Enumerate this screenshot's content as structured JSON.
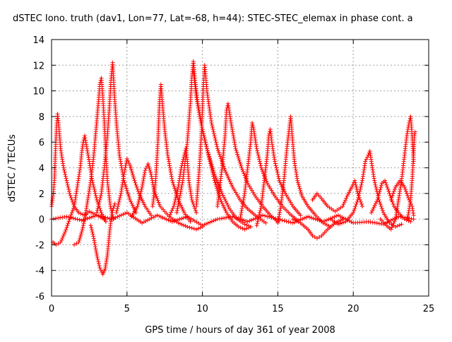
{
  "chart_data": {
    "type": "scatter",
    "title": "dSTEC Iono. truth (dav1, Lon=77, Lat=-68, h=44): STEC-STEC_elemax in phase cont. a",
    "xlabel": "GPS time / hours of day 361 of year 2008",
    "ylabel": "dSTEC  / TECUs",
    "xlim": [
      0,
      25
    ],
    "ylim": [
      -6,
      14
    ],
    "x_ticks": [
      0,
      5,
      10,
      15,
      20,
      25
    ],
    "y_ticks": [
      -6,
      -4,
      -2,
      0,
      2,
      4,
      6,
      8,
      10,
      12,
      14
    ],
    "grid": true,
    "marker": "+",
    "color": "#ff0000",
    "series": [
      {
        "values": [
          [
            0.0,
            1.0
          ],
          [
            0.1,
            1.8
          ],
          [
            0.2,
            3.2
          ],
          [
            0.25,
            5.0
          ],
          [
            0.3,
            6.5
          ],
          [
            0.35,
            7.5
          ],
          [
            0.4,
            8.2
          ],
          [
            0.5,
            7.0
          ],
          [
            0.6,
            5.5
          ],
          [
            0.8,
            4.0
          ],
          [
            1.0,
            3.0
          ],
          [
            1.2,
            2.0
          ],
          [
            1.5,
            1.0
          ],
          [
            1.8,
            0.5
          ],
          [
            2.2,
            0.3
          ],
          [
            2.5,
            0.6
          ],
          [
            3.0,
            0.3
          ],
          [
            3.5,
            0.0
          ]
        ]
      },
      {
        "values": [
          [
            0.1,
            -1.8
          ],
          [
            0.3,
            -2.0
          ],
          [
            0.6,
            -1.8
          ],
          [
            0.9,
            -1.0
          ],
          [
            1.2,
            0.0
          ],
          [
            1.5,
            1.0
          ],
          [
            1.7,
            2.5
          ],
          [
            1.9,
            4.0
          ],
          [
            2.0,
            5.2
          ],
          [
            2.1,
            6.0
          ],
          [
            2.2,
            6.5
          ],
          [
            2.3,
            5.8
          ],
          [
            2.5,
            4.5
          ],
          [
            2.7,
            3.0
          ],
          [
            3.0,
            1.5
          ],
          [
            3.3,
            0.5
          ],
          [
            3.6,
            -0.2
          ]
        ]
      },
      {
        "values": [
          [
            1.5,
            -2.0
          ],
          [
            1.8,
            -1.8
          ],
          [
            2.0,
            -1.0
          ],
          [
            2.2,
            0.0
          ],
          [
            2.4,
            1.5
          ],
          [
            2.6,
            3.0
          ],
          [
            2.8,
            5.0
          ],
          [
            2.95,
            7.0
          ],
          [
            3.1,
            9.0
          ],
          [
            3.2,
            10.5
          ],
          [
            3.3,
            11.0
          ],
          [
            3.4,
            9.5
          ],
          [
            3.5,
            7.5
          ],
          [
            3.6,
            5.0
          ],
          [
            3.7,
            3.0
          ],
          [
            3.9,
            1.0
          ],
          [
            4.1,
            0.0
          ]
        ]
      },
      {
        "values": [
          [
            2.6,
            -0.5
          ],
          [
            2.8,
            -1.5
          ],
          [
            3.0,
            -2.8
          ],
          [
            3.2,
            -3.8
          ],
          [
            3.4,
            -4.3
          ],
          [
            3.55,
            -3.9
          ],
          [
            3.7,
            -2.8
          ],
          [
            3.85,
            -1.0
          ],
          [
            4.0,
            0.5
          ],
          [
            4.2,
            1.2
          ]
        ]
      },
      {
        "values": [
          [
            3.0,
            0.5
          ],
          [
            3.3,
            2.0
          ],
          [
            3.5,
            4.0
          ],
          [
            3.7,
            6.5
          ],
          [
            3.85,
            9.0
          ],
          [
            3.95,
            11.0
          ],
          [
            4.05,
            12.2
          ],
          [
            4.15,
            10.0
          ],
          [
            4.3,
            7.5
          ],
          [
            4.5,
            5.0
          ],
          [
            4.8,
            3.0
          ],
          [
            5.2,
            1.5
          ],
          [
            5.6,
            0.5
          ]
        ]
      },
      {
        "values": [
          [
            4.3,
            0.5
          ],
          [
            4.6,
            2.0
          ],
          [
            4.8,
            3.5
          ],
          [
            5.0,
            4.7
          ],
          [
            5.2,
            4.2
          ],
          [
            5.5,
            3.0
          ],
          [
            5.8,
            2.0
          ],
          [
            6.2,
            1.0
          ],
          [
            6.6,
            0.3
          ]
        ]
      },
      {
        "values": [
          [
            5.3,
            0.2
          ],
          [
            5.7,
            1.0
          ],
          [
            6.0,
            2.5
          ],
          [
            6.2,
            3.8
          ],
          [
            6.4,
            4.3
          ],
          [
            6.6,
            3.5
          ],
          [
            6.8,
            2.2
          ],
          [
            7.2,
            1.0
          ],
          [
            7.8,
            0.2
          ],
          [
            8.4,
            -0.3
          ],
          [
            9.0,
            -0.6
          ],
          [
            9.6,
            -0.8
          ],
          [
            10.0,
            -0.6
          ]
        ]
      },
      {
        "values": [
          [
            6.7,
            1.0
          ],
          [
            6.9,
            3.0
          ],
          [
            7.05,
            6.0
          ],
          [
            7.15,
            9.0
          ],
          [
            7.25,
            10.5
          ],
          [
            7.35,
            9.0
          ],
          [
            7.5,
            7.0
          ],
          [
            7.7,
            5.0
          ],
          [
            8.0,
            3.0
          ],
          [
            8.4,
            1.5
          ],
          [
            8.8,
            0.5
          ],
          [
            9.2,
            -0.2
          ]
        ]
      },
      {
        "values": [
          [
            7.8,
            0.2
          ],
          [
            8.1,
            1.0
          ],
          [
            8.4,
            2.5
          ],
          [
            8.6,
            4.0
          ],
          [
            8.8,
            5.0
          ],
          [
            8.9,
            5.5
          ],
          [
            9.0,
            4.5
          ],
          [
            9.1,
            3.0
          ],
          [
            9.3,
            1.5
          ],
          [
            9.6,
            0.5
          ]
        ]
      },
      {
        "values": [
          [
            8.3,
            0.5
          ],
          [
            8.7,
            3.0
          ],
          [
            9.0,
            6.0
          ],
          [
            9.2,
            9.0
          ],
          [
            9.3,
            11.0
          ],
          [
            9.4,
            12.3
          ],
          [
            9.5,
            11.0
          ],
          [
            9.7,
            9.0
          ],
          [
            10.0,
            7.0
          ],
          [
            10.4,
            5.0
          ],
          [
            10.8,
            3.0
          ],
          [
            11.2,
            1.5
          ],
          [
            11.6,
            0.5
          ],
          [
            12.0,
            -0.2
          ],
          [
            12.4,
            -0.6
          ],
          [
            12.8,
            -0.8
          ],
          [
            13.2,
            -0.6
          ]
        ]
      },
      {
        "values": [
          [
            9.4,
            11.5
          ],
          [
            9.6,
            9.5
          ],
          [
            9.9,
            7.5
          ],
          [
            10.3,
            5.5
          ],
          [
            10.8,
            3.5
          ],
          [
            11.3,
            2.0
          ],
          [
            11.8,
            0.8
          ],
          [
            12.3,
            0.0
          ],
          [
            12.8,
            -0.4
          ],
          [
            13.2,
            -0.6
          ]
        ]
      },
      {
        "values": [
          [
            9.6,
            1.0
          ],
          [
            9.8,
            4.0
          ],
          [
            9.95,
            7.0
          ],
          [
            10.05,
            10.0
          ],
          [
            10.15,
            12.0
          ],
          [
            10.3,
            10.0
          ],
          [
            10.6,
            7.5
          ],
          [
            11.0,
            5.5
          ],
          [
            11.5,
            3.8
          ],
          [
            12.0,
            2.5
          ],
          [
            12.5,
            1.5
          ],
          [
            13.0,
            0.8
          ],
          [
            13.6,
            0.2
          ],
          [
            14.2,
            -0.3
          ]
        ]
      },
      {
        "values": [
          [
            11.0,
            1.0
          ],
          [
            11.3,
            4.0
          ],
          [
            11.5,
            6.5
          ],
          [
            11.6,
            8.5
          ],
          [
            11.7,
            9.0
          ],
          [
            11.9,
            7.5
          ],
          [
            12.2,
            5.5
          ],
          [
            12.6,
            4.0
          ],
          [
            13.0,
            2.8
          ],
          [
            13.5,
            1.8
          ],
          [
            14.0,
            1.0
          ],
          [
            14.5,
            0.3
          ],
          [
            15.0,
            -0.2
          ]
        ]
      },
      {
        "values": [
          [
            12.5,
            0.0
          ],
          [
            12.8,
            2.0
          ],
          [
            13.0,
            4.0
          ],
          [
            13.2,
            6.0
          ],
          [
            13.3,
            7.5
          ],
          [
            13.4,
            7.0
          ],
          [
            13.6,
            5.5
          ],
          [
            13.9,
            4.0
          ],
          [
            14.3,
            2.8
          ],
          [
            14.8,
            1.8
          ],
          [
            15.3,
            1.0
          ],
          [
            15.8,
            0.4
          ],
          [
            16.3,
            -0.1
          ]
        ]
      },
      {
        "values": [
          [
            13.6,
            -0.5
          ],
          [
            13.9,
            1.0
          ],
          [
            14.1,
            3.0
          ],
          [
            14.3,
            5.0
          ],
          [
            14.4,
            6.5
          ],
          [
            14.5,
            7.0
          ],
          [
            14.6,
            6.0
          ],
          [
            14.8,
            4.5
          ],
          [
            15.1,
            3.0
          ],
          [
            15.5,
            2.0
          ],
          [
            16.0,
            1.0
          ],
          [
            16.5,
            0.3
          ]
        ]
      },
      {
        "values": [
          [
            15.0,
            -0.3
          ],
          [
            15.2,
            1.0
          ],
          [
            15.4,
            3.0
          ],
          [
            15.6,
            5.5
          ],
          [
            15.75,
            7.0
          ],
          [
            15.85,
            8.0
          ],
          [
            15.95,
            6.5
          ],
          [
            16.1,
            4.5
          ],
          [
            16.3,
            3.0
          ],
          [
            16.6,
            1.8
          ],
          [
            17.0,
            1.0
          ],
          [
            17.5,
            0.3
          ],
          [
            18.0,
            -0.3
          ],
          [
            18.5,
            -0.6
          ]
        ]
      },
      {
        "values": [
          [
            16.0,
            0.0
          ],
          [
            16.5,
            -0.3
          ],
          [
            17.0,
            -0.8
          ],
          [
            17.3,
            -1.3
          ],
          [
            17.6,
            -1.5
          ],
          [
            17.9,
            -1.3
          ],
          [
            18.3,
            -0.8
          ],
          [
            18.8,
            -0.3
          ],
          [
            19.3,
            0.0
          ]
        ]
      },
      {
        "values": [
          [
            17.3,
            1.5
          ],
          [
            17.6,
            2.0
          ],
          [
            17.9,
            1.6
          ],
          [
            18.3,
            1.0
          ],
          [
            18.8,
            0.6
          ],
          [
            19.3,
            1.0
          ],
          [
            19.6,
            1.8
          ],
          [
            19.9,
            2.5
          ],
          [
            20.1,
            3.0
          ],
          [
            20.3,
            2.0
          ],
          [
            20.6,
            1.0
          ]
        ]
      },
      {
        "values": [
          [
            18.5,
            0.0
          ],
          [
            19.0,
            -0.4
          ],
          [
            19.5,
            -0.2
          ],
          [
            20.0,
            0.5
          ],
          [
            20.3,
            1.5
          ],
          [
            20.6,
            3.0
          ],
          [
            20.8,
            4.5
          ],
          [
            21.0,
            5.0
          ],
          [
            21.1,
            5.3
          ],
          [
            21.2,
            4.5
          ],
          [
            21.4,
            3.0
          ],
          [
            21.7,
            1.5
          ],
          [
            22.0,
            0.5
          ],
          [
            22.4,
            -0.3
          ],
          [
            22.8,
            -0.6
          ],
          [
            23.2,
            -0.4
          ]
        ]
      },
      {
        "values": [
          [
            21.2,
            0.5
          ],
          [
            21.6,
            1.5
          ],
          [
            21.9,
            2.8
          ],
          [
            22.1,
            3.0
          ],
          [
            22.4,
            2.0
          ],
          [
            22.7,
            1.0
          ],
          [
            23.0,
            0.5
          ],
          [
            23.4,
            0.0
          ],
          [
            23.8,
            -0.2
          ]
        ]
      },
      {
        "values": [
          [
            21.8,
            0.0
          ],
          [
            22.2,
            -0.5
          ],
          [
            22.5,
            -0.8
          ],
          [
            22.8,
            0.0
          ],
          [
            23.0,
            1.5
          ],
          [
            23.2,
            3.0
          ],
          [
            23.4,
            5.0
          ],
          [
            23.55,
            6.5
          ],
          [
            23.7,
            7.5
          ],
          [
            23.8,
            8.0
          ],
          [
            23.9,
            6.5
          ],
          [
            24.0,
            4.5
          ]
        ]
      },
      {
        "values": [
          [
            22.5,
            1.5
          ],
          [
            22.8,
            2.5
          ],
          [
            23.1,
            3.0
          ],
          [
            23.4,
            2.5
          ],
          [
            23.7,
            1.5
          ],
          [
            23.9,
            1.0
          ],
          [
            24.0,
            0.3
          ]
        ]
      },
      {
        "values": [
          [
            23.6,
            0.0
          ],
          [
            23.8,
            1.5
          ],
          [
            23.9,
            3.0
          ],
          [
            24.0,
            5.0
          ],
          [
            24.05,
            6.5
          ],
          [
            24.1,
            6.8
          ]
        ]
      },
      {
        "values": [
          [
            0.0,
            0.0
          ],
          [
            1.0,
            0.2
          ],
          [
            2.0,
            -0.1
          ],
          [
            3.0,
            0.3
          ],
          [
            4.0,
            0.0
          ],
          [
            5.0,
            0.5
          ],
          [
            6.0,
            -0.3
          ],
          [
            7.0,
            0.3
          ],
          [
            8.0,
            -0.2
          ],
          [
            9.0,
            0.2
          ],
          [
            10.0,
            -0.5
          ],
          [
            11.0,
            0.0
          ],
          [
            12.0,
            0.2
          ],
          [
            13.0,
            -0.2
          ],
          [
            14.0,
            0.3
          ],
          [
            15.0,
            0.0
          ],
          [
            16.0,
            -0.3
          ],
          [
            17.0,
            0.2
          ],
          [
            18.0,
            -0.2
          ],
          [
            19.0,
            0.3
          ],
          [
            20.0,
            -0.3
          ],
          [
            21.0,
            -0.2
          ],
          [
            22.0,
            -0.4
          ],
          [
            23.0,
            0.2
          ],
          [
            24.0,
            0.0
          ]
        ]
      }
    ]
  }
}
